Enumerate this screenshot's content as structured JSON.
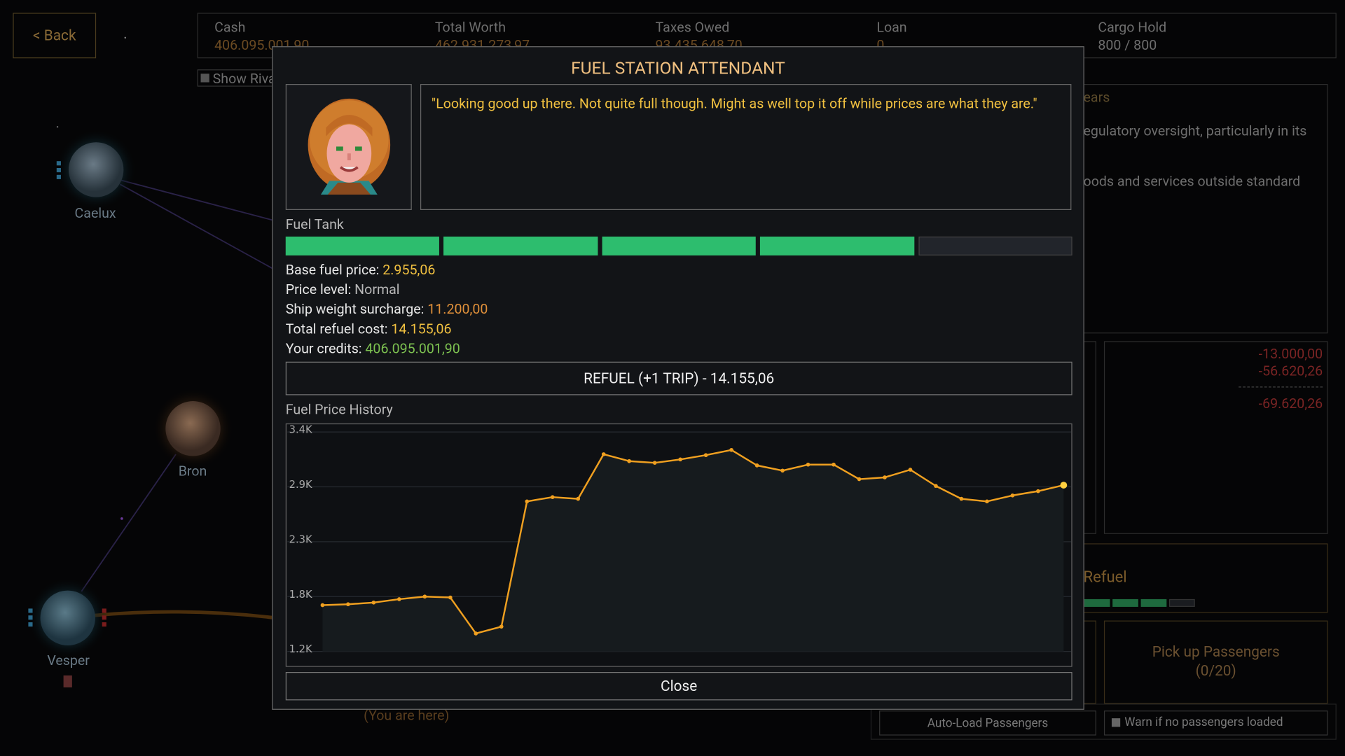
{
  "map": {
    "back_button": "< Back",
    "stats": [
      {
        "label": "Cash",
        "value": "406.095.001,90"
      },
      {
        "label": "Total Worth",
        "value": "462.931.273,97"
      },
      {
        "label": "Taxes Owed",
        "value": "93.435.648,70"
      },
      {
        "label": "Loan",
        "value": "0"
      },
      {
        "label": "Cargo Hold",
        "value": "800 / 800"
      }
    ],
    "show_rivals": "Show Riva",
    "planets": [
      "Caelux",
      "Bron",
      "Vesper"
    ],
    "you_are_here": "(You are here)",
    "info_panel": {
      "title": "ears",
      "lines": [
        "egulatory oversight, particularly in its",
        "oods and services outside standard"
      ]
    },
    "ledger": {
      "entries": [
        "-13.000,00",
        "-56.620,26"
      ],
      "total": "-69.620,26"
    },
    "refuel_panel": "Refuel",
    "pickup": {
      "line1": "Pick up Passengers",
      "line2": "(0/20)"
    },
    "auto_load": "Auto-Load Passengers",
    "warn": "Warn if no passengers loaded"
  },
  "dialog": {
    "title": "FUEL STATION ATTENDANT",
    "quote": "\"Looking good up there. Not quite full though. Might as well top it off while prices are what they are.\"",
    "fuel_tank": {
      "label": "Fuel Tank",
      "level": 4,
      "segments": 5
    },
    "info": [
      {
        "label": "Base fuel price:",
        "value": "2.955,06",
        "color": "#f0c040"
      },
      {
        "label": "Price level:",
        "value": "Normal",
        "color": "#b8b8b8"
      },
      {
        "label": "Ship weight surcharge:",
        "value": "11.200,00",
        "color": "#e0903a"
      },
      {
        "label": "Total refuel cost:",
        "value": "14.155,06",
        "color": "#f0c040"
      },
      {
        "label": "Your credits:",
        "value": "406.095.001,90",
        "color": "#7cc050"
      }
    ],
    "refuel_button": "REFUEL (+1 TRIP) - 14.155,06",
    "history_label": "Fuel Price History",
    "close": "Close"
  },
  "chart_data": {
    "type": "line",
    "values": [
      1664,
      1673,
      1690,
      1724,
      1750,
      1741,
      1380,
      1449,
      2704,
      2747,
      2730,
      3177,
      3108,
      3091,
      3125,
      3168,
      3220,
      3065,
      3013,
      3073,
      3073,
      2927,
      2945,
      3022,
      2859,
      2730,
      2704,
      2764,
      2807,
      2867
    ],
    "color": "#f0a020",
    "ylim": [
      1200,
      3400
    ],
    "yticks": [
      {
        "value": 3400,
        "label": "3.4K"
      },
      {
        "value": 2850,
        "label": "2.9K"
      },
      {
        "value": 2300,
        "label": "2.3K"
      },
      {
        "value": 1750,
        "label": "1.8K"
      },
      {
        "value": 1200,
        "label": "1.2K"
      }
    ],
    "grid": true
  }
}
